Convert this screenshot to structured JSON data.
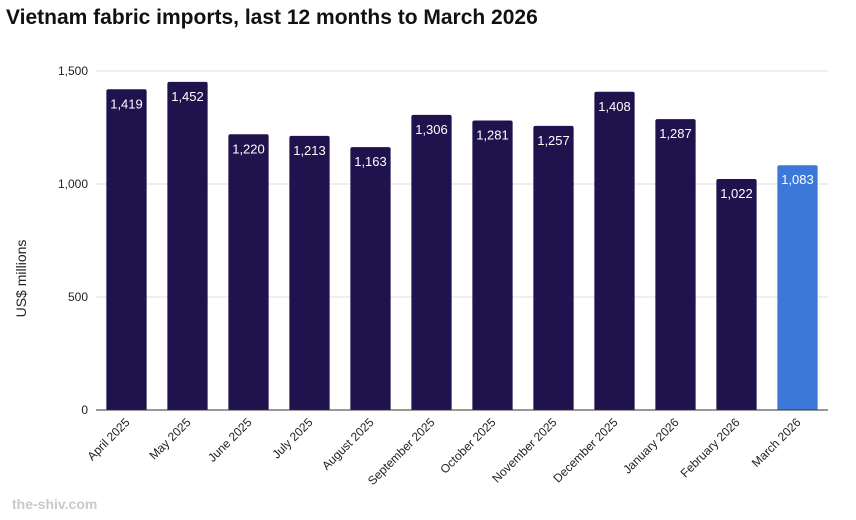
{
  "title": "Vietnam fabric imports, last 12 months to March 2026",
  "footer": "the-shiv.com",
  "colors": {
    "bar_default": "#20124d",
    "bar_highlight": "#3c78d8",
    "gridline": "#dddddd",
    "axis": "#333333",
    "text": "#222222",
    "label_text": "#ffffff"
  },
  "chart_data": {
    "type": "bar",
    "title": "Vietnam fabric imports, last 12 months to March 2026",
    "xlabel": "",
    "ylabel": "US$ millions",
    "ylim": [
      0,
      1500
    ],
    "yticks": [
      0,
      500,
      1000,
      1500
    ],
    "ytick_labels": [
      "0",
      "500",
      "1,000",
      "1,500"
    ],
    "grid": true,
    "legend": "none",
    "highlight_category": "March 2026",
    "categories": [
      "April 2025",
      "May 2025",
      "June 2025",
      "July 2025",
      "August 2025",
      "September 2025",
      "October 2025",
      "November 2025",
      "December 2025",
      "January 2026",
      "February 2026",
      "March 2026"
    ],
    "values": [
      1419,
      1452,
      1220,
      1213,
      1163,
      1306,
      1281,
      1257,
      1408,
      1287,
      1022,
      1083
    ],
    "value_labels": [
      "1,419",
      "1,452",
      "1,220",
      "1,213",
      "1,163",
      "1,306",
      "1,281",
      "1,257",
      "1,408",
      "1,287",
      "1,022",
      "1,083"
    ]
  }
}
